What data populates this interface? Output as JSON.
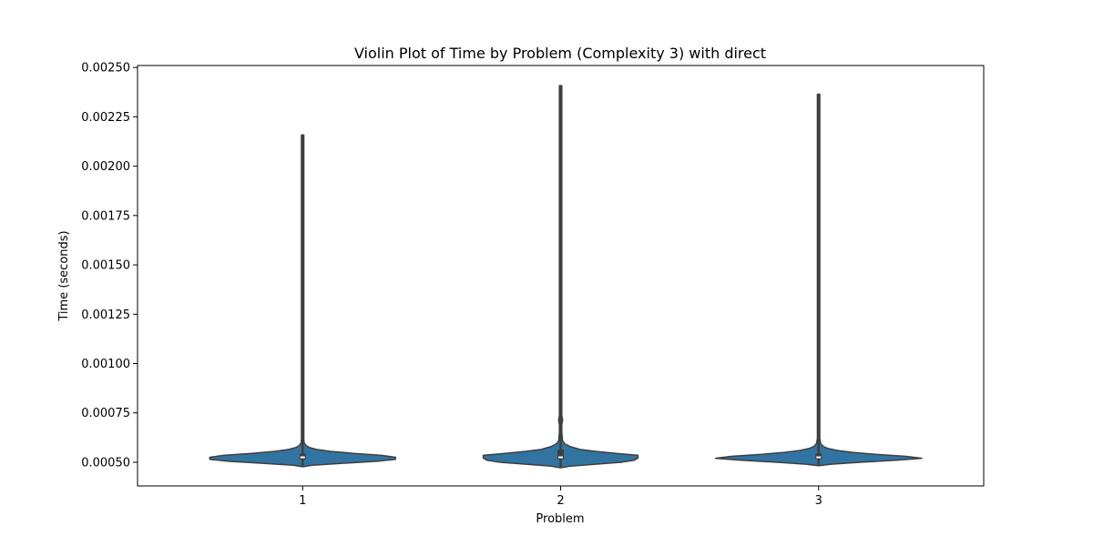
{
  "chart_data": {
    "type": "violin",
    "title": "Violin Plot of Time by Problem (Complexity 3) with direct",
    "xlabel": "Problem",
    "ylabel": "Time (seconds)",
    "categories": [
      "1",
      "2",
      "3"
    ],
    "ylim": [
      0.00038,
      0.00251
    ],
    "yticks": [
      0.0005,
      0.00075,
      0.001,
      0.00125,
      0.0015,
      0.00175,
      0.002,
      0.00225,
      0.0025
    ],
    "ytick_labels": [
      "0.00050",
      "0.00075",
      "0.00100",
      "0.00125",
      "0.00150",
      "0.00175",
      "0.00200",
      "0.00225",
      "0.00250"
    ],
    "grid": false,
    "color": "#3274a1",
    "violins": [
      {
        "category": "1",
        "min": 0.000478,
        "max": 0.002158,
        "q1": 0.000515,
        "median": 0.000525,
        "q3": 0.000543,
        "half_width": 0.36,
        "density": [
          [
            0.000478,
            0.0
          ],
          [
            0.000485,
            0.1
          ],
          [
            0.000495,
            0.45
          ],
          [
            0.000505,
            0.8
          ],
          [
            0.000515,
            1.0
          ],
          [
            0.000525,
            1.0
          ],
          [
            0.000535,
            0.85
          ],
          [
            0.000545,
            0.55
          ],
          [
            0.000555,
            0.3
          ],
          [
            0.000565,
            0.15
          ],
          [
            0.000575,
            0.07
          ],
          [
            0.000585,
            0.035
          ],
          [
            0.0006,
            0.015
          ],
          [
            0.00062,
            0.008
          ],
          [
            0.0007,
            0.006
          ],
          [
            0.002158,
            0.004
          ]
        ]
      },
      {
        "category": "2",
        "min": 0.000473,
        "max": 0.002408,
        "q1": 0.000515,
        "median": 0.000525,
        "q3": 0.000563,
        "half_width": 0.3,
        "density": [
          [
            0.000473,
            0.0
          ],
          [
            0.00048,
            0.12
          ],
          [
            0.00049,
            0.45
          ],
          [
            0.0005,
            0.78
          ],
          [
            0.00051,
            0.95
          ],
          [
            0.000522,
            1.0
          ],
          [
            0.000535,
            1.0
          ],
          [
            0.000545,
            0.72
          ],
          [
            0.000555,
            0.45
          ],
          [
            0.000565,
            0.25
          ],
          [
            0.00058,
            0.12
          ],
          [
            0.000595,
            0.05
          ],
          [
            0.00061,
            0.025
          ],
          [
            0.00065,
            0.012
          ],
          [
            0.00069,
            0.014
          ],
          [
            0.000715,
            0.026
          ],
          [
            0.000735,
            0.014
          ],
          [
            0.00076,
            0.008
          ],
          [
            0.0009,
            0.006
          ],
          [
            0.002408,
            0.004
          ]
        ]
      },
      {
        "category": "3",
        "min": 0.000483,
        "max": 0.002365,
        "q1": 0.000515,
        "median": 0.000525,
        "q3": 0.000545,
        "half_width": 0.4,
        "density": [
          [
            0.000483,
            0.0
          ],
          [
            0.00049,
            0.12
          ],
          [
            0.0005,
            0.4
          ],
          [
            0.00051,
            0.75
          ],
          [
            0.00052,
            1.0
          ],
          [
            0.00053,
            0.85
          ],
          [
            0.00054,
            0.55
          ],
          [
            0.00055,
            0.33
          ],
          [
            0.00056,
            0.18
          ],
          [
            0.00057,
            0.09
          ],
          [
            0.00058,
            0.045
          ],
          [
            0.000595,
            0.02
          ],
          [
            0.00062,
            0.01
          ],
          [
            0.0007,
            0.006
          ],
          [
            0.002365,
            0.004
          ]
        ]
      }
    ]
  }
}
